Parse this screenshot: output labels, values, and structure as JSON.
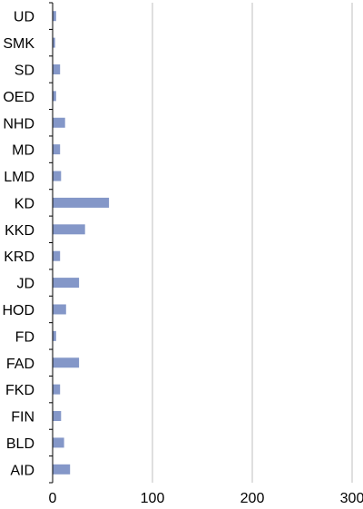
{
  "chart_data": {
    "type": "bar",
    "orientation": "horizontal",
    "title": "",
    "xlabel": "",
    "ylabel": "",
    "categories": [
      "UD",
      "SMK",
      "SD",
      "OED",
      "NHD",
      "MD",
      "LMD",
      "KD",
      "KKD",
      "KRD",
      "JD",
      "HOD",
      "FD",
      "FAD",
      "FKD",
      "FIN",
      "BLD",
      "AID"
    ],
    "values": [
      3,
      2,
      7,
      3,
      12,
      7,
      8,
      56,
      32,
      7,
      26,
      13,
      3,
      26,
      7,
      8,
      11,
      17
    ],
    "xlim": [
      0,
      300
    ],
    "xticks": [
      "0",
      "100",
      "200",
      "300"
    ],
    "grid": true,
    "bar_color": "#8497c8",
    "grid_color": "#bfbfbf"
  }
}
